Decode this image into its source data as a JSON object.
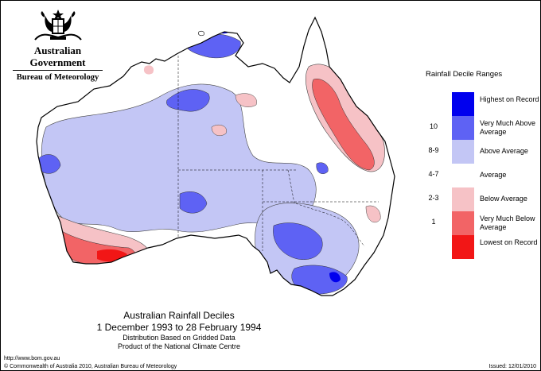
{
  "branding": {
    "government": "Australian Government",
    "bureau": "Bureau of Meteorology"
  },
  "legend": {
    "title": "Rainfall Decile Ranges",
    "items": [
      {
        "code": "",
        "label": "Highest on Record",
        "color": "#0000ee"
      },
      {
        "code": "10",
        "label": "Very Much Above Average",
        "color": "#5e62f4"
      },
      {
        "code": "8-9",
        "label": "Above Average",
        "color": "#c3c6f5"
      },
      {
        "code": "4-7",
        "label": "Average",
        "color": "#ffffff"
      },
      {
        "code": "2-3",
        "label": "Below Average",
        "color": "#f6c2c6"
      },
      {
        "code": "1",
        "label": "Very Much Below Average",
        "color": "#f26466"
      },
      {
        "code": "",
        "label": "Lowest on Record",
        "color": "#f21616"
      }
    ]
  },
  "map_title": {
    "line1": "Australian Rainfall Deciles",
    "line2": "1 December 1993 to 28 February 1994",
    "line3": "Distribution Based on Gridded Data",
    "line4": "Product of the National Climate Centre"
  },
  "footer": {
    "url": "http://www.bom.gov.au",
    "copyright": "© Commonwealth of Australia 2010, Australian Bureau of Meteorology",
    "issued": "Issued: 12/01/2010"
  }
}
